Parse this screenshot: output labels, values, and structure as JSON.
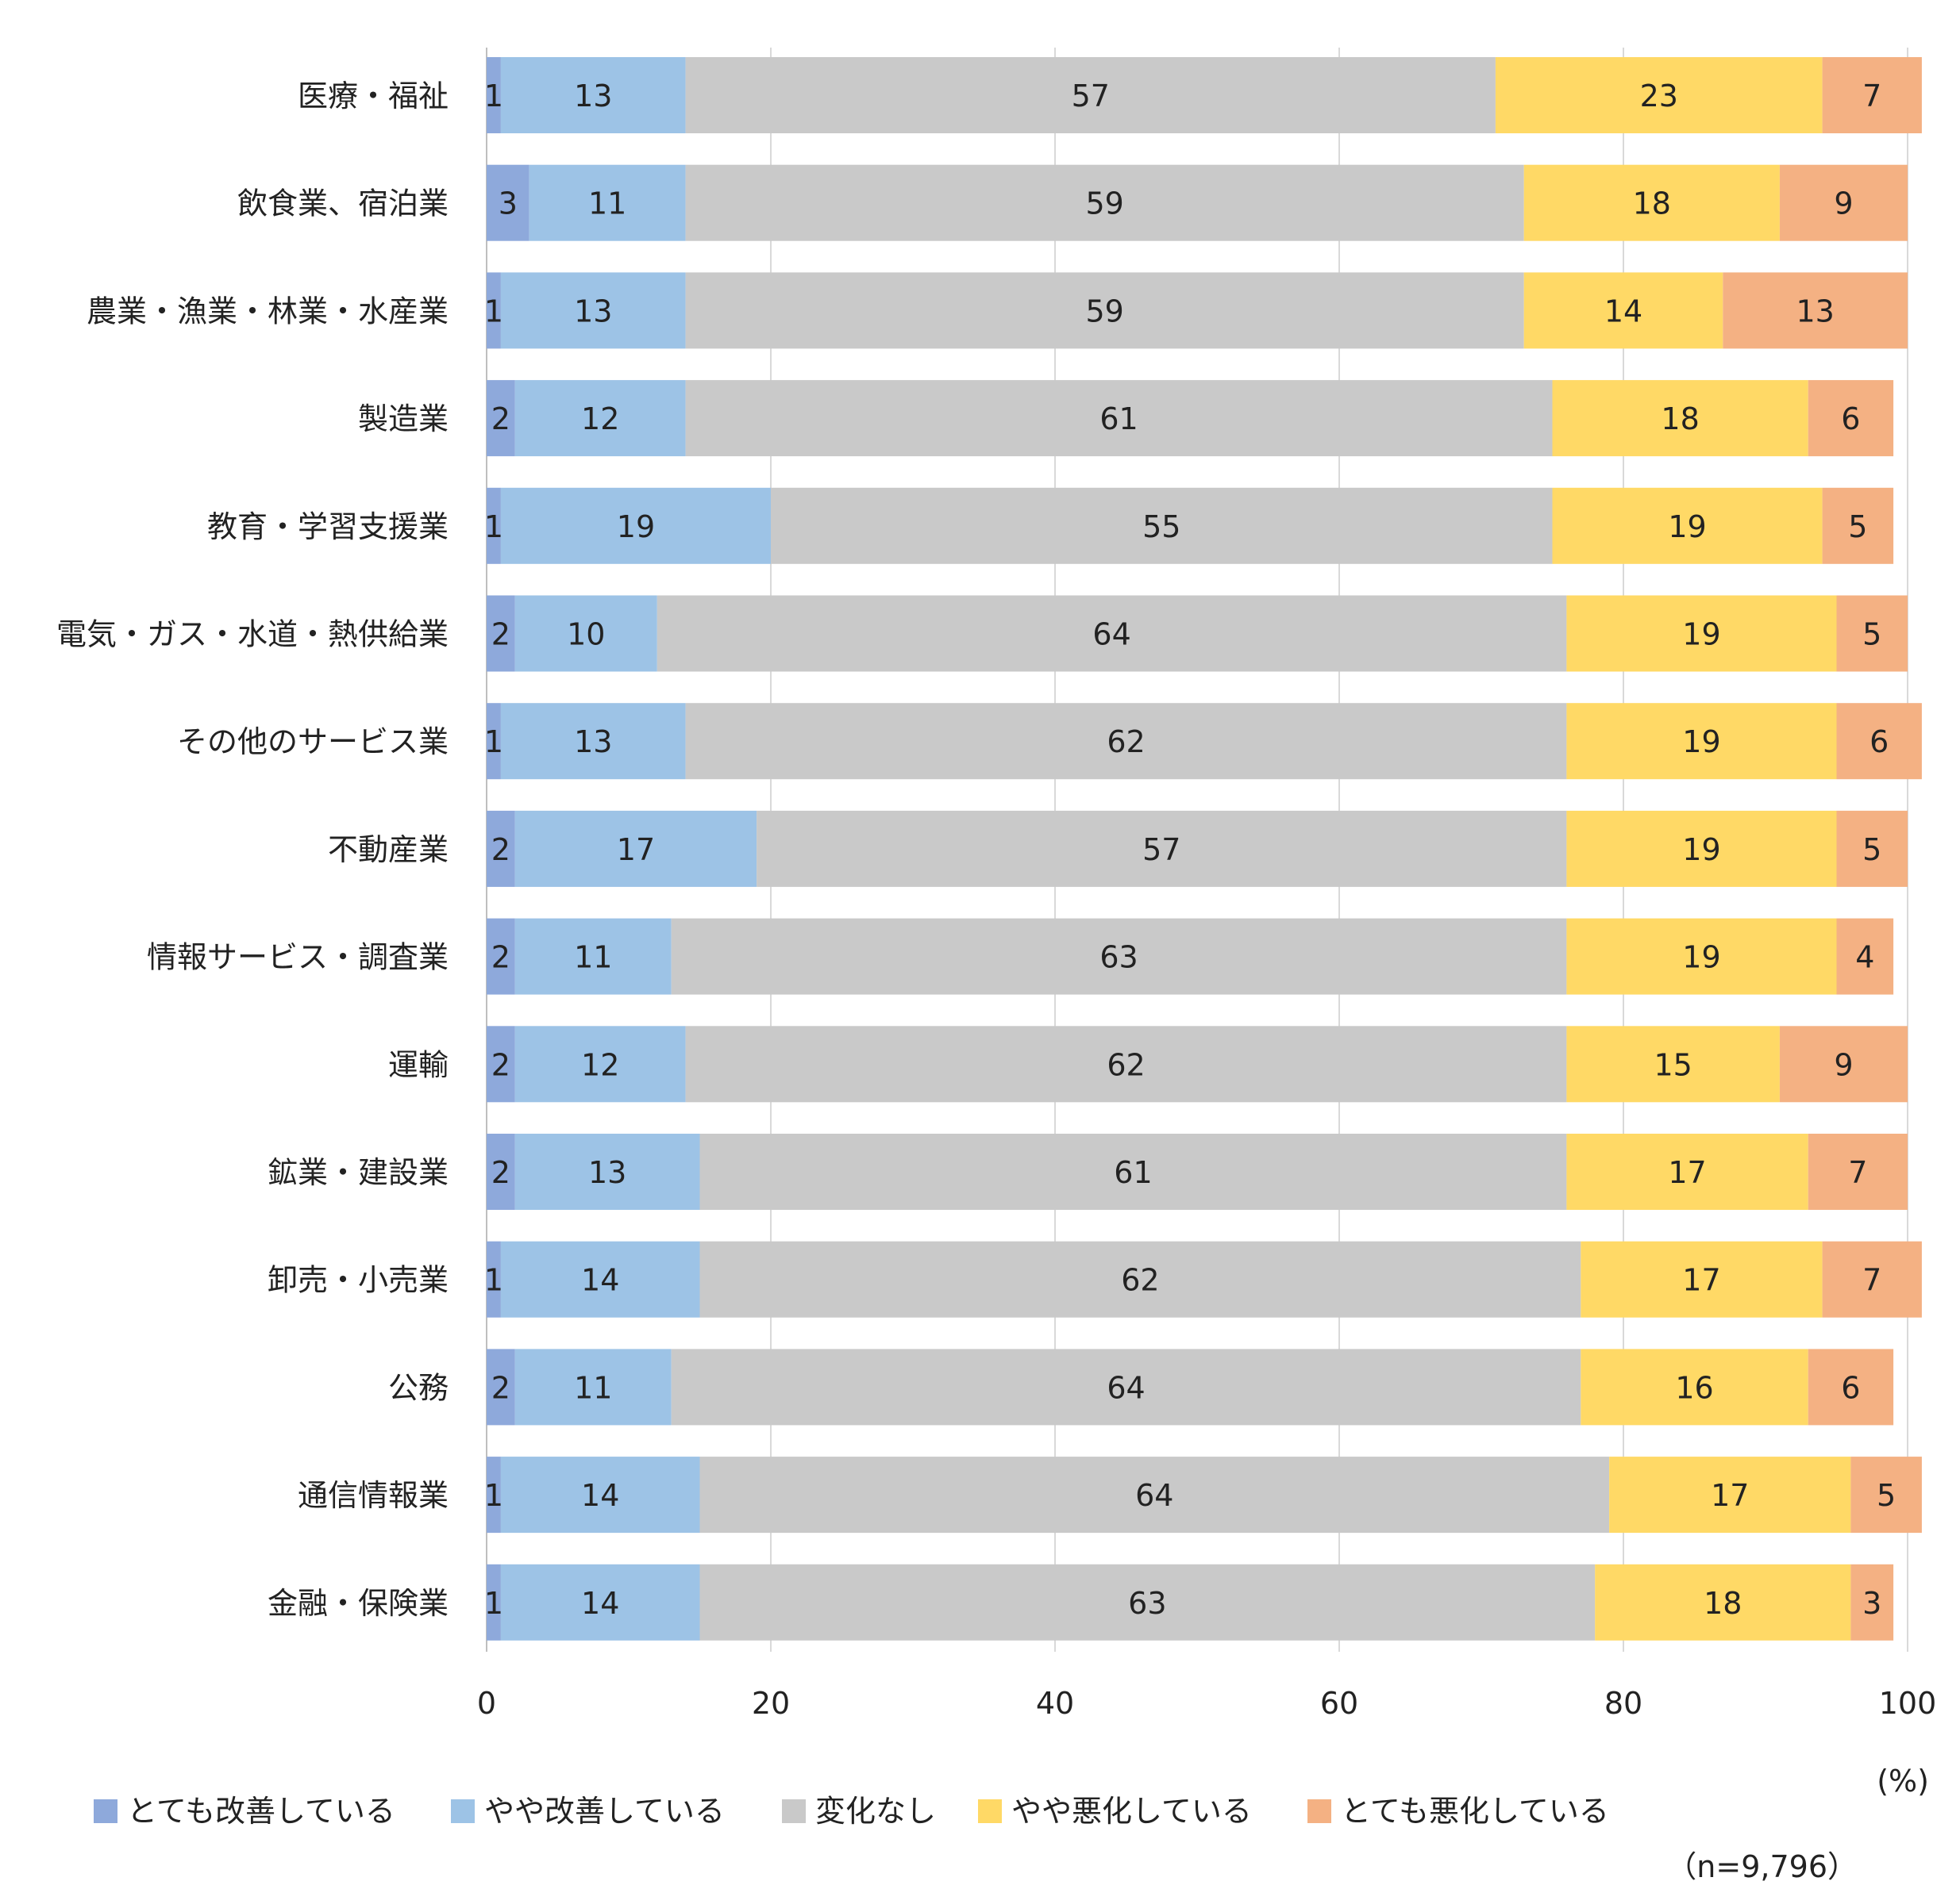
{
  "chart_data": {
    "type": "bar",
    "orientation": "horizontal",
    "stacked": true,
    "unit_label": "(%)",
    "sample_note": "（n=9,796）",
    "xlim": [
      0,
      100
    ],
    "xticks": [
      "0",
      "20",
      "40",
      "60",
      "80",
      "100"
    ],
    "grid": true,
    "legend_position": "bottom",
    "categories": [
      "医療・福祉",
      "飲食業、宿泊業",
      "農業・漁業・林業・水産業",
      "製造業",
      "教育・学習支援業",
      "電気・ガス・水道・熱供給業",
      "その他のサービス業",
      "不動産業",
      "情報サービス・調査業",
      "運輸",
      "鉱業・建設業",
      "卸売・小売業",
      "公務",
      "通信情報業",
      "金融・保険業"
    ],
    "series": [
      {
        "name": "とても改善している",
        "color": "#8EA9DB",
        "values": [
          1,
          3,
          1,
          2,
          1,
          2,
          1,
          2,
          2,
          2,
          2,
          1,
          2,
          1,
          1
        ]
      },
      {
        "name": "やや改善している",
        "color": "#9DC3E6",
        "values": [
          13,
          11,
          13,
          12,
          19,
          10,
          13,
          17,
          11,
          12,
          13,
          14,
          11,
          14,
          14
        ]
      },
      {
        "name": "変化なし",
        "color": "#C9C9C9",
        "values": [
          57,
          59,
          59,
          61,
          55,
          64,
          62,
          57,
          63,
          62,
          61,
          62,
          64,
          64,
          63
        ]
      },
      {
        "name": "やや悪化している",
        "color": "#FFD966",
        "values": [
          23,
          18,
          14,
          18,
          19,
          19,
          19,
          19,
          19,
          15,
          17,
          17,
          16,
          17,
          18
        ]
      },
      {
        "name": "とても悪化している",
        "color": "#F4B183",
        "values": [
          7,
          9,
          13,
          6,
          5,
          5,
          6,
          5,
          4,
          9,
          7,
          7,
          6,
          5,
          3
        ]
      }
    ]
  }
}
